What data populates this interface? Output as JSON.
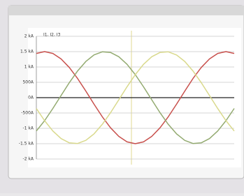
{
  "chart_data": {
    "type": "line",
    "title": "I1, I2, I3",
    "x": [
      0,
      1,
      2,
      3,
      4,
      5,
      6,
      7,
      8,
      9,
      10,
      11,
      12,
      13,
      14,
      15,
      16,
      17,
      18,
      19,
      20,
      21,
      22,
      23,
      24
    ],
    "xlim": [
      0,
      24
    ],
    "series": [
      {
        "color": "#c8504c",
        "values": [
          1440,
          1500,
          1440,
          1262,
          982,
          622,
          213,
          -213,
          -622,
          -982,
          -1262,
          -1440,
          -1500,
          -1440,
          -1262,
          -982,
          -622,
          -213,
          213,
          622,
          982,
          1262,
          1440,
          1500,
          1440
        ]
      },
      {
        "color": "#93aa70",
        "values": [
          -1086,
          -750,
          -353,
          71,
          491,
          871,
          1179,
          1393,
          1493,
          1473,
          1333,
          1086,
          750,
          353,
          -71,
          -491,
          -871,
          -1179,
          -1393,
          -1493,
          -1473,
          -1333,
          -1086,
          -750,
          -353
        ]
      },
      {
        "color": "#d9d98c",
        "values": [
          -354,
          -750,
          -1087,
          -1333,
          -1473,
          -1493,
          -1392,
          -1180,
          -871,
          -491,
          -71,
          354,
          750,
          1087,
          1333,
          1473,
          1493,
          1392,
          1180,
          871,
          491,
          71,
          -354,
          -750,
          -1087
        ]
      }
    ],
    "ylim": [
      -2000,
      2000
    ],
    "yticks": [
      {
        "value": 2000,
        "label": "2 kA"
      },
      {
        "value": 1500,
        "label": "1.5 kA"
      },
      {
        "value": 1000,
        "label": "1 kA"
      },
      {
        "value": 500,
        "label": "500A"
      },
      {
        "value": 0,
        "label": "0A"
      },
      {
        "value": -500,
        "label": "-500A"
      },
      {
        "value": -1000,
        "label": "-1 kA"
      },
      {
        "value": -1500,
        "label": "-1.5 kA"
      },
      {
        "value": -2000,
        "label": "-2 kA"
      }
    ],
    "grid": true
  }
}
